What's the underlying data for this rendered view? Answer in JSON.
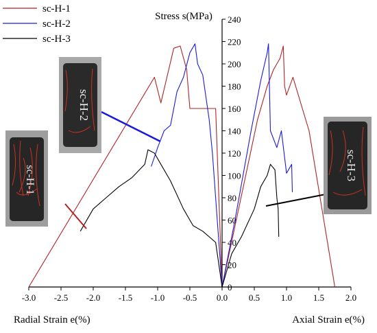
{
  "chart_data": {
    "type": "line",
    "title": "",
    "ylabel": "Stress s(MPa)",
    "xlabel_left": "Radial Strain e(%)",
    "xlabel_right": "Axial Strain e(%)",
    "xlim": [
      -3.0,
      2.0
    ],
    "ylim": [
      0,
      240
    ],
    "x_ticks": [
      "-3.0",
      "-2.5",
      "-2.0",
      "-1.5",
      "-1.0",
      "-0.5",
      "0.0",
      "0.5",
      "1.0",
      "1.5",
      "2.0"
    ],
    "y_ticks": [
      "0",
      "20",
      "40",
      "60",
      "80",
      "100",
      "120",
      "140",
      "160",
      "180",
      "200",
      "220",
      "240"
    ],
    "grid": false,
    "legend_position": "top-left",
    "series": [
      {
        "name": "sc-H-1",
        "color": "#b22222",
        "segments": [
          [
            [
              -3.0,
              0
            ],
            [
              -1.05,
              188
            ],
            [
              -0.95,
              165
            ],
            [
              -0.75,
              214
            ],
            [
              -0.65,
              216
            ],
            [
              -0.55,
              195
            ],
            [
              -0.5,
              160
            ],
            [
              -0.1,
              160
            ],
            [
              -0.05,
              80
            ],
            [
              0.0,
              0
            ]
          ],
          [
            [
              0.0,
              0
            ],
            [
              0.55,
              150
            ],
            [
              0.7,
              180
            ],
            [
              0.8,
              195
            ],
            [
              0.9,
              205
            ],
            [
              0.95,
              216
            ],
            [
              0.97,
              180
            ],
            [
              1.0,
              172
            ],
            [
              1.1,
              188
            ],
            [
              1.35,
              140
            ],
            [
              1.75,
              0
            ]
          ]
        ]
      },
      {
        "name": "sc-H-2",
        "color": "#1a1adb",
        "segments": [
          [
            [
              -1.1,
              108
            ],
            [
              -1.0,
              125
            ],
            [
              -0.9,
              140
            ],
            [
              -0.8,
              145
            ],
            [
              -0.7,
              175
            ],
            [
              -0.6,
              188
            ],
            [
              -0.5,
              210
            ],
            [
              -0.42,
              218
            ],
            [
              -0.38,
              200
            ],
            [
              -0.3,
              190
            ],
            [
              -0.2,
              150
            ],
            [
              -0.15,
              120
            ],
            [
              -0.1,
              80
            ],
            [
              0.0,
              0
            ]
          ],
          [
            [
              0.0,
              0
            ],
            [
              0.2,
              60
            ],
            [
              0.45,
              140
            ],
            [
              0.6,
              185
            ],
            [
              0.7,
              210
            ],
            [
              0.72,
              218
            ],
            [
              0.75,
              140
            ],
            [
              0.85,
              125
            ],
            [
              0.92,
              140
            ],
            [
              1.0,
              102
            ],
            [
              1.08,
              110
            ],
            [
              1.09,
              85
            ]
          ]
        ]
      },
      {
        "name": "sc-H-3",
        "color": "#000000",
        "segments": [
          [
            [
              -2.2,
              50
            ],
            [
              -2.0,
              70
            ],
            [
              -1.8,
              80
            ],
            [
              -1.6,
              90
            ],
            [
              -1.4,
              98
            ],
            [
              -1.2,
              110
            ],
            [
              -1.15,
              123
            ],
            [
              -1.05,
              120
            ],
            [
              -0.95,
              110
            ],
            [
              -0.8,
              95
            ],
            [
              -0.6,
              70
            ],
            [
              -0.45,
              55
            ],
            [
              -0.3,
              50
            ],
            [
              -0.1,
              40
            ],
            [
              0.0,
              0
            ]
          ],
          [
            [
              0.0,
              0
            ],
            [
              0.15,
              30
            ],
            [
              0.3,
              45
            ],
            [
              0.5,
              70
            ],
            [
              0.6,
              90
            ],
            [
              0.7,
              100
            ],
            [
              0.75,
              110
            ],
            [
              0.82,
              105
            ],
            [
              0.85,
              80
            ],
            [
              0.87,
              70
            ],
            [
              0.88,
              45
            ]
          ]
        ]
      }
    ]
  },
  "photos": [
    {
      "label": "sc-H-1",
      "leader_color": "#b22222"
    },
    {
      "label": "sc-H-2",
      "leader_color": "#1a1adb"
    },
    {
      "label": "sc-H-3",
      "leader_color": "#000000"
    }
  ]
}
